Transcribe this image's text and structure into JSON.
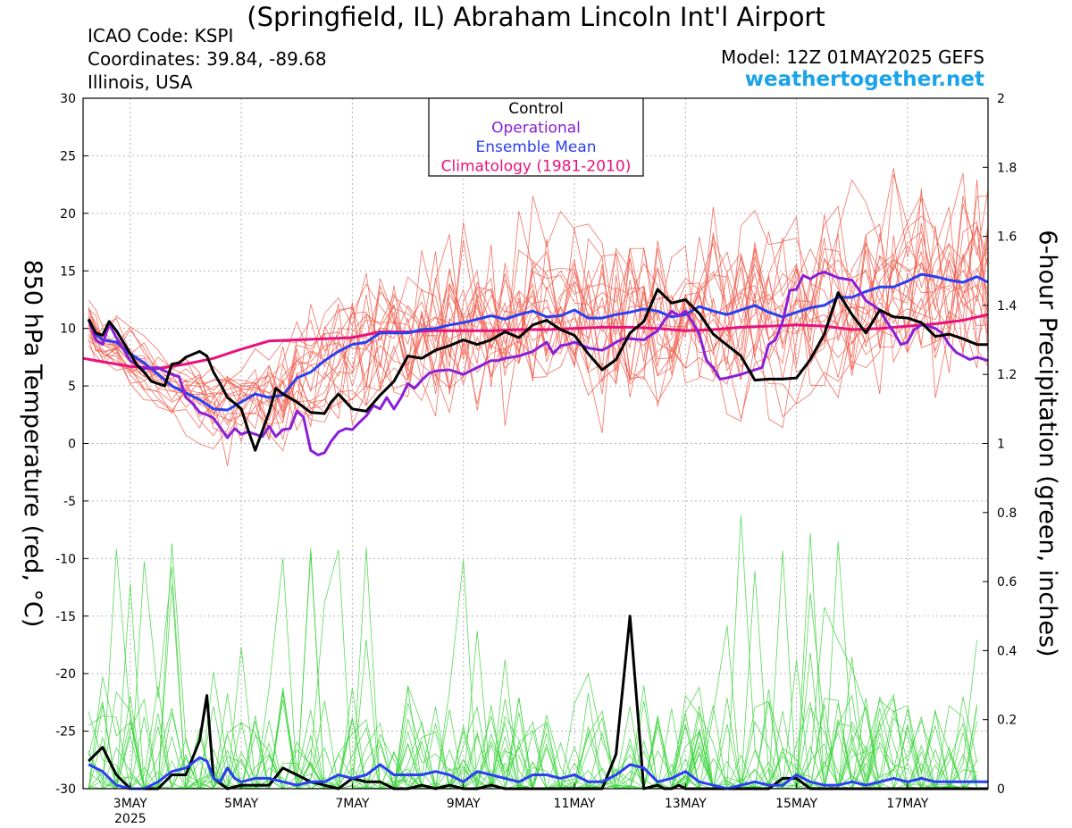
{
  "header": {
    "title": "(Springfield, IL) Abraham Lincoln Int'l Airport",
    "icao": "ICAO Code: KSPI",
    "coordinates": "Coordinates: 39.84, -89.68",
    "region": "Illinois, USA",
    "model": "Model: 12Z 01MAY2025 GEFS",
    "brand": "weathertogether.net"
  },
  "chart_data": {
    "type": "line",
    "ylabel": "850 hPa Temperature (red, °C)",
    "y2label": "6-hour Precipitation (green, inches)",
    "ylim": [
      -30,
      30
    ],
    "y2lim": [
      0,
      2
    ],
    "grid": true,
    "x_unit": "days since 01 MAY 2025 12Z",
    "xlim": [
      0.65,
      16.95
    ],
    "x_ticks": [
      {
        "x": 1.5,
        "label": "3MAY",
        "sub": "2025"
      },
      {
        "x": 3.5,
        "label": "5MAY",
        "sub": ""
      },
      {
        "x": 5.5,
        "label": "7MAY",
        "sub": ""
      },
      {
        "x": 7.5,
        "label": "9MAY",
        "sub": ""
      },
      {
        "x": 9.5,
        "label": "11MAY",
        "sub": ""
      },
      {
        "x": 11.5,
        "label": "13MAY",
        "sub": ""
      },
      {
        "x": 13.5,
        "label": "15MAY",
        "sub": ""
      },
      {
        "x": 15.5,
        "label": "17MAY",
        "sub": ""
      }
    ],
    "y_ticks": [
      30,
      25,
      20,
      15,
      10,
      5,
      0,
      -5,
      -10,
      -15,
      -20,
      -25,
      -30
    ],
    "y2_ticks": [
      2,
      1.8,
      1.6,
      1.4,
      1.2,
      1,
      0.8,
      0.6,
      0.4,
      0.2,
      0
    ],
    "legend": {
      "position": "top-center",
      "entries": [
        {
          "label": "Control",
          "color": "#000000"
        },
        {
          "label": "Operational",
          "color": "#8a1fd6"
        },
        {
          "label": "Ensemble Mean",
          "color": "#2a3ff0"
        },
        {
          "label": "Climatology (1981-2010)",
          "color": "#e8127c"
        }
      ]
    },
    "colors": {
      "control": "#000000",
      "operational": "#8a1fd6",
      "mean": "#2a3ff0",
      "climatology": "#e8127c",
      "members_temp": "#f05a4a",
      "members_precip": "#3bd43b"
    },
    "series": [
      {
        "name": "Control",
        "axis": "temp",
        "x": [
          0.75,
          0.88,
          1.0,
          1.12,
          1.25,
          1.5,
          1.62,
          1.75,
          1.88,
          2.0,
          2.12,
          2.25,
          2.38,
          2.5,
          2.75,
          2.88,
          3.0,
          3.12,
          3.25,
          3.38,
          3.5,
          3.62,
          3.75,
          4.0,
          4.12,
          4.25,
          4.5,
          4.75,
          5.0,
          5.12,
          5.25,
          5.5,
          5.75,
          6.0,
          6.25,
          6.5,
          6.75,
          7.0,
          7.25,
          7.5,
          7.75,
          8.0,
          8.25,
          8.5,
          8.75,
          9.0,
          9.25,
          9.5,
          9.75,
          10.0,
          10.25,
          10.5,
          10.75,
          11.0,
          11.25,
          11.5,
          11.75,
          12.0,
          12.5,
          12.75,
          13.0,
          13.25,
          13.5,
          13.75,
          14.0,
          14.25,
          14.5,
          14.75,
          15.0,
          15.25,
          15.5,
          15.75,
          16.0,
          16.25,
          16.5,
          16.75,
          16.95
        ],
        "values": [
          10.8,
          9.6,
          9.4,
          10.6,
          9.8,
          7.8,
          6.8,
          6.2,
          5.4,
          5.2,
          5.0,
          6.9,
          7.0,
          7.5,
          8.0,
          7.6,
          6.2,
          5.2,
          4.0,
          3.5,
          3.0,
          1.2,
          -0.6,
          2.7,
          4.8,
          4.3,
          3.6,
          2.7,
          2.6,
          3.6,
          4.3,
          3.0,
          2.8,
          4.2,
          5.4,
          7.6,
          7.4,
          8.1,
          8.5,
          9.0,
          8.6,
          9.0,
          9.7,
          9.2,
          10.3,
          10.7,
          9.9,
          9.4,
          7.8,
          6.4,
          7.3,
          9.6,
          10.6,
          13.4,
          12.2,
          12.5,
          11.3,
          9.5,
          7.6,
          5.5,
          5.6,
          5.6,
          5.7,
          7.3,
          9.5,
          13.1,
          11.2,
          9.6,
          11.6,
          11.0,
          10.9,
          10.5,
          9.3,
          9.5,
          9.1,
          8.6,
          8.6
        ]
      },
      {
        "name": "Operational",
        "axis": "temp",
        "x": [
          0.75,
          0.88,
          1.0,
          1.12,
          1.25,
          1.5,
          1.62,
          1.75,
          2.0,
          2.25,
          2.38,
          2.5,
          2.62,
          2.75,
          2.88,
          3.0,
          3.12,
          3.25,
          3.38,
          3.5,
          3.62,
          3.75,
          3.88,
          4.0,
          4.12,
          4.25,
          4.38,
          4.5,
          4.62,
          4.75,
          4.88,
          5.0,
          5.12,
          5.25,
          5.38,
          5.5,
          5.62,
          5.75,
          5.88,
          6.0,
          6.12,
          6.25,
          6.38,
          6.5,
          6.62,
          6.75,
          6.88,
          7.0,
          7.25,
          7.5,
          7.75,
          8.0,
          8.12,
          8.25,
          8.5,
          8.75,
          9.0,
          9.12,
          9.25,
          9.38,
          9.5,
          9.75,
          10.0,
          10.12,
          10.25,
          10.38,
          10.5,
          10.75,
          11.0,
          11.12,
          11.25,
          11.38,
          11.5,
          11.62,
          11.75,
          11.88,
          12.0,
          12.12,
          12.25,
          12.5,
          12.75,
          12.88,
          13.0,
          13.12,
          13.25,
          13.38,
          13.5,
          13.62,
          13.75,
          13.88,
          14.0,
          14.25,
          14.5,
          14.62,
          14.75,
          14.88,
          15.0,
          15.12,
          15.25,
          15.38,
          15.5,
          15.62,
          15.75,
          15.88,
          16.0,
          16.12,
          16.25,
          16.38,
          16.5,
          16.62,
          16.75,
          16.95
        ],
        "values": [
          10.8,
          9.0,
          8.6,
          10.4,
          9.2,
          7.2,
          6.8,
          6.5,
          6.6,
          6.0,
          5.8,
          4.0,
          3.5,
          2.7,
          2.5,
          2.2,
          1.4,
          0.5,
          1.3,
          0.8,
          1.0,
          0.8,
          0.6,
          1.5,
          0.6,
          1.2,
          1.3,
          2.8,
          2.3,
          -0.6,
          -1.0,
          -0.8,
          0.2,
          1.0,
          1.3,
          1.2,
          1.8,
          2.4,
          3.3,
          3.0,
          4.0,
          3.0,
          4.0,
          5.2,
          4.8,
          5.5,
          6.1,
          6.3,
          6.4,
          6.0,
          6.6,
          7.2,
          7.2,
          7.4,
          7.6,
          8.0,
          8.8,
          7.8,
          8.5,
          8.6,
          8.8,
          8.3,
          8.1,
          8.4,
          8.8,
          9.1,
          9.1,
          9.0,
          9.8,
          10.7,
          11.5,
          11.1,
          11.5,
          10.6,
          9.5,
          7.2,
          6.6,
          5.6,
          5.7,
          6.0,
          6.4,
          6.6,
          8.6,
          9.0,
          10.6,
          13.3,
          13.4,
          14.6,
          14.3,
          14.7,
          14.9,
          14.4,
          14.2,
          13.4,
          12.4,
          12.0,
          11.6,
          10.6,
          9.7,
          8.6,
          8.8,
          9.9,
          10.3,
          10.2,
          10.0,
          9.6,
          8.6,
          7.9,
          7.6,
          7.3,
          7.5,
          7.2
        ]
      },
      {
        "name": "Ensemble Mean",
        "axis": "temp",
        "x": [
          0.75,
          0.88,
          1.0,
          1.25,
          1.5,
          1.75,
          2.0,
          2.25,
          2.5,
          2.75,
          3.0,
          3.25,
          3.5,
          3.75,
          4.0,
          4.25,
          4.5,
          4.75,
          5.0,
          5.25,
          5.5,
          5.75,
          6.0,
          6.25,
          6.5,
          6.75,
          7.0,
          7.25,
          7.5,
          7.75,
          8.0,
          8.25,
          8.5,
          8.75,
          9.0,
          9.25,
          9.5,
          9.75,
          10.0,
          10.25,
          10.5,
          10.75,
          11.0,
          11.25,
          11.5,
          11.75,
          12.0,
          12.25,
          12.5,
          12.75,
          13.0,
          13.25,
          13.5,
          13.75,
          14.0,
          14.25,
          14.5,
          14.75,
          15.0,
          15.25,
          15.5,
          15.75,
          16.0,
          16.25,
          16.5,
          16.75,
          16.95
        ],
        "values": [
          10.7,
          9.5,
          9.0,
          8.8,
          7.8,
          7.0,
          6.0,
          5.0,
          4.4,
          3.8,
          3.0,
          2.9,
          3.6,
          4.3,
          4.0,
          4.2,
          5.7,
          6.2,
          7.2,
          8.0,
          8.6,
          8.8,
          9.6,
          9.6,
          9.6,
          9.9,
          10.0,
          10.3,
          10.5,
          10.8,
          11.1,
          10.8,
          11.2,
          11.5,
          11.0,
          11.1,
          11.6,
          10.9,
          10.9,
          11.2,
          11.4,
          11.7,
          11.5,
          11.0,
          11.2,
          11.9,
          11.5,
          11.2,
          11.6,
          12.0,
          11.4,
          11.0,
          11.4,
          11.8,
          12.0,
          12.7,
          12.7,
          13.2,
          13.6,
          13.6,
          14.1,
          14.7,
          14.5,
          14.2,
          14.0,
          14.5,
          14.0
        ]
      },
      {
        "name": "Climatology (1981-2010)",
        "axis": "temp",
        "x": [
          0.65,
          1.0,
          1.5,
          2.0,
          2.5,
          3.0,
          3.5,
          4.0,
          4.5,
          5.0,
          5.5,
          6.0,
          6.5,
          7.0,
          7.5,
          8.0,
          8.5,
          9.0,
          9.5,
          10.0,
          10.5,
          11.0,
          11.5,
          12.0,
          12.5,
          13.0,
          13.5,
          14.0,
          14.5,
          15.0,
          15.5,
          16.0,
          16.5,
          16.95
        ],
        "values": [
          7.4,
          7.1,
          6.7,
          6.5,
          6.9,
          7.4,
          8.2,
          8.9,
          9.0,
          9.1,
          9.2,
          9.7,
          9.7,
          9.8,
          9.8,
          9.8,
          9.9,
          9.9,
          10.0,
          10.1,
          10.1,
          10.0,
          9.8,
          9.9,
          10.1,
          10.2,
          10.3,
          10.2,
          9.9,
          10.0,
          10.2,
          10.4,
          10.7,
          11.2
        ]
      },
      {
        "name": "Control",
        "axis": "precip",
        "x": [
          0.75,
          1.0,
          1.25,
          1.5,
          1.75,
          2.0,
          2.25,
          2.5,
          2.75,
          2.88,
          3.0,
          3.25,
          3.5,
          3.75,
          4.0,
          4.25,
          4.5,
          4.75,
          5.0,
          5.25,
          5.5,
          5.75,
          6.0,
          6.25,
          6.5,
          6.75,
          7.0,
          7.25,
          7.5,
          7.75,
          8.0,
          8.25,
          8.5,
          8.75,
          9.0,
          9.25,
          9.5,
          9.75,
          10.0,
          10.25,
          10.5,
          10.75,
          11.0,
          11.12,
          11.25,
          11.38,
          11.5,
          11.75,
          12.0,
          12.25,
          12.5,
          12.75,
          13.0,
          13.25,
          13.5,
          13.75,
          14.0,
          14.25,
          14.5,
          14.75,
          15.0,
          15.25,
          15.5,
          15.75,
          16.0,
          16.25,
          16.5,
          16.75,
          16.95
        ],
        "values": [
          0.08,
          0.12,
          0.04,
          0.0,
          0.0,
          0.0,
          0.04,
          0.04,
          0.14,
          0.27,
          0.03,
          0.0,
          0.01,
          0.01,
          0.01,
          0.06,
          0.04,
          0.02,
          0.01,
          0.0,
          0.03,
          0.02,
          0.02,
          0.0,
          0.0,
          0.01,
          0.0,
          0.01,
          0.0,
          0.0,
          0.01,
          0.0,
          0.0,
          0.0,
          0.0,
          0.0,
          0.0,
          0.0,
          0.0,
          0.1,
          0.5,
          0.0,
          0.01,
          0.0,
          0.0,
          0.01,
          0.0,
          0.0,
          0.0,
          0.0,
          0.0,
          0.0,
          0.0,
          0.03,
          0.03,
          0.0,
          0.0,
          0.0,
          0.0,
          0.0,
          0.0,
          0.0,
          0.0,
          0.0,
          0.0,
          0.0,
          0.0,
          0.0,
          0.0
        ]
      },
      {
        "name": "Ensemble Mean",
        "axis": "precip",
        "x": [
          0.75,
          1.0,
          1.25,
          1.5,
          1.75,
          2.0,
          2.25,
          2.5,
          2.75,
          2.88,
          3.0,
          3.12,
          3.25,
          3.38,
          3.5,
          3.75,
          4.0,
          4.25,
          4.5,
          4.75,
          5.0,
          5.25,
          5.5,
          5.75,
          6.0,
          6.25,
          6.5,
          6.75,
          7.0,
          7.25,
          7.5,
          7.75,
          8.0,
          8.25,
          8.5,
          8.75,
          9.0,
          9.25,
          9.5,
          9.75,
          10.0,
          10.25,
          10.5,
          10.75,
          11.0,
          11.25,
          11.5,
          11.75,
          12.0,
          12.25,
          12.5,
          12.75,
          13.0,
          13.25,
          13.5,
          13.75,
          14.0,
          14.25,
          14.5,
          14.75,
          15.0,
          15.25,
          15.5,
          15.75,
          16.0,
          16.25,
          16.5,
          16.75,
          16.95
        ],
        "values": [
          0.07,
          0.05,
          0.01,
          0.0,
          0.0,
          0.02,
          0.05,
          0.06,
          0.09,
          0.08,
          0.03,
          0.02,
          0.06,
          0.03,
          0.02,
          0.03,
          0.03,
          0.02,
          0.01,
          0.02,
          0.02,
          0.04,
          0.03,
          0.04,
          0.07,
          0.04,
          0.04,
          0.04,
          0.05,
          0.04,
          0.02,
          0.05,
          0.04,
          0.03,
          0.02,
          0.04,
          0.04,
          0.03,
          0.04,
          0.02,
          0.02,
          0.04,
          0.07,
          0.06,
          0.02,
          0.03,
          0.05,
          0.02,
          0.01,
          0.0,
          0.01,
          0.02,
          0.01,
          0.01,
          0.04,
          0.02,
          0.01,
          0.01,
          0.02,
          0.01,
          0.02,
          0.03,
          0.02,
          0.03,
          0.02,
          0.02,
          0.02,
          0.02,
          0.02
        ]
      }
    ]
  }
}
